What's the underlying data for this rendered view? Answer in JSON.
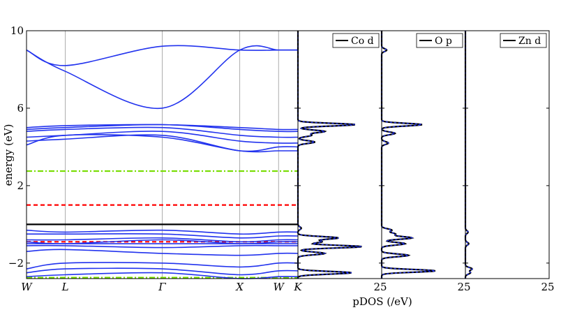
{
  "chart_data": [
    {
      "type": "line",
      "panel": "band-structure",
      "ylabel": "energy (eV)",
      "ylim": [
        -2.8,
        10
      ],
      "yticks": [
        -2,
        2,
        6,
        10
      ],
      "ytick_labels": [
        "−2",
        "2",
        "6",
        "10"
      ],
      "kpath": [
        "W",
        "L",
        "Γ",
        "X",
        "W",
        "K"
      ],
      "kpath_positions": [
        0,
        1,
        3.5,
        5.5,
        6.5,
        7
      ],
      "reference_lines": [
        {
          "value": 0,
          "color": "#000000",
          "style": "solid"
        },
        {
          "value": 1.0,
          "color": "#ff0000",
          "style": "dashed"
        },
        {
          "value": 2.75,
          "color": "#77dd00",
          "style": "dashdot"
        },
        {
          "value": -0.9,
          "color": "#ff0000",
          "style": "dashed"
        },
        {
          "value": -2.75,
          "color": "#77dd00",
          "style": "dashdot"
        }
      ],
      "band_color": "#2233ee",
      "bands": [
        [
          9.0,
          8.2,
          9.2,
          9.0,
          9.0,
          9.0
        ],
        [
          9.0,
          7.9,
          6.0,
          9.0,
          9.0,
          9.0
        ],
        [
          5.0,
          5.1,
          5.15,
          5.0,
          4.9,
          4.9
        ],
        [
          4.9,
          5.0,
          5.15,
          4.9,
          4.8,
          4.8
        ],
        [
          4.8,
          4.9,
          5.0,
          4.6,
          4.5,
          4.5
        ],
        [
          4.5,
          4.6,
          4.8,
          4.3,
          4.2,
          4.2
        ],
        [
          4.3,
          4.4,
          4.6,
          3.8,
          4.0,
          4.0
        ],
        [
          4.1,
          4.6,
          4.5,
          3.8,
          3.8,
          3.8
        ],
        [
          -0.3,
          -0.4,
          -0.3,
          -0.5,
          -0.4,
          -0.4
        ],
        [
          -0.5,
          -0.5,
          -0.5,
          -0.7,
          -0.6,
          -0.6
        ],
        [
          -0.8,
          -0.8,
          -0.7,
          -0.9,
          -0.8,
          -0.8
        ],
        [
          -0.9,
          -1.0,
          -0.8,
          -1.0,
          -0.9,
          -0.9
        ],
        [
          -1.0,
          -1.0,
          -1.0,
          -1.0,
          -1.0,
          -1.0
        ],
        [
          -1.1,
          -1.1,
          -1.2,
          -1.1,
          -1.1,
          -1.1
        ],
        [
          -1.4,
          -1.3,
          -1.5,
          -1.6,
          -1.5,
          -1.5
        ],
        [
          -2.3,
          -2.0,
          -2.0,
          -2.2,
          -2.0,
          -2.0
        ],
        [
          -2.5,
          -2.3,
          -2.3,
          -2.6,
          -2.4,
          -2.4
        ],
        [
          -2.7,
          -2.6,
          -2.5,
          -2.8,
          -2.7,
          -2.7
        ]
      ]
    },
    {
      "type": "line",
      "panel": "pdos-co-d",
      "legend": "Co d",
      "xlim": [
        0,
        25
      ],
      "xtick_labels": [
        "25"
      ],
      "ylim": [
        -2.8,
        10
      ],
      "peaks": [
        {
          "energy": -0.2,
          "value": 1.0
        },
        {
          "energy": -0.7,
          "value": 12.0
        },
        {
          "energy": -0.9,
          "value": 7.0
        },
        {
          "energy": -1.15,
          "value": 19.0
        },
        {
          "energy": -1.5,
          "value": 8.0
        },
        {
          "energy": -2.5,
          "value": 16.0
        },
        {
          "energy": 4.25,
          "value": 5.0
        },
        {
          "energy": 4.6,
          "value": 4.0
        },
        {
          "energy": 4.8,
          "value": 8.0
        },
        {
          "energy": 5.15,
          "value": 17.0
        }
      ]
    },
    {
      "type": "line",
      "panel": "pdos-o-p",
      "legend": "O p",
      "xlim": [
        0,
        25
      ],
      "xtick_labels": [
        "25"
      ],
      "ylim": [
        -2.8,
        10
      ],
      "peaks": [
        {
          "energy": -0.3,
          "value": 3.0
        },
        {
          "energy": -0.5,
          "value": 4.0
        },
        {
          "energy": -0.7,
          "value": 9.0
        },
        {
          "energy": -1.0,
          "value": 7.0
        },
        {
          "energy": -1.6,
          "value": 8.0
        },
        {
          "energy": -2.4,
          "value": 16.0
        },
        {
          "energy": 4.2,
          "value": 2.0
        },
        {
          "energy": 4.7,
          "value": 4.0
        },
        {
          "energy": 5.15,
          "value": 12.0
        },
        {
          "energy": 9.0,
          "value": 1.5
        }
      ]
    },
    {
      "type": "line",
      "panel": "pdos-zn-d",
      "legend": "Zn d",
      "xlim": [
        0,
        25
      ],
      "xtick_labels": [
        "25"
      ],
      "xlabel": "pDOS (/eV)",
      "ylim": [
        -2.8,
        10
      ],
      "peaks": [
        {
          "energy": -0.4,
          "value": 0.8
        },
        {
          "energy": -1.0,
          "value": 1.0
        },
        {
          "energy": -2.3,
          "value": 2.0
        },
        {
          "energy": -2.5,
          "value": 1.5
        }
      ]
    }
  ]
}
